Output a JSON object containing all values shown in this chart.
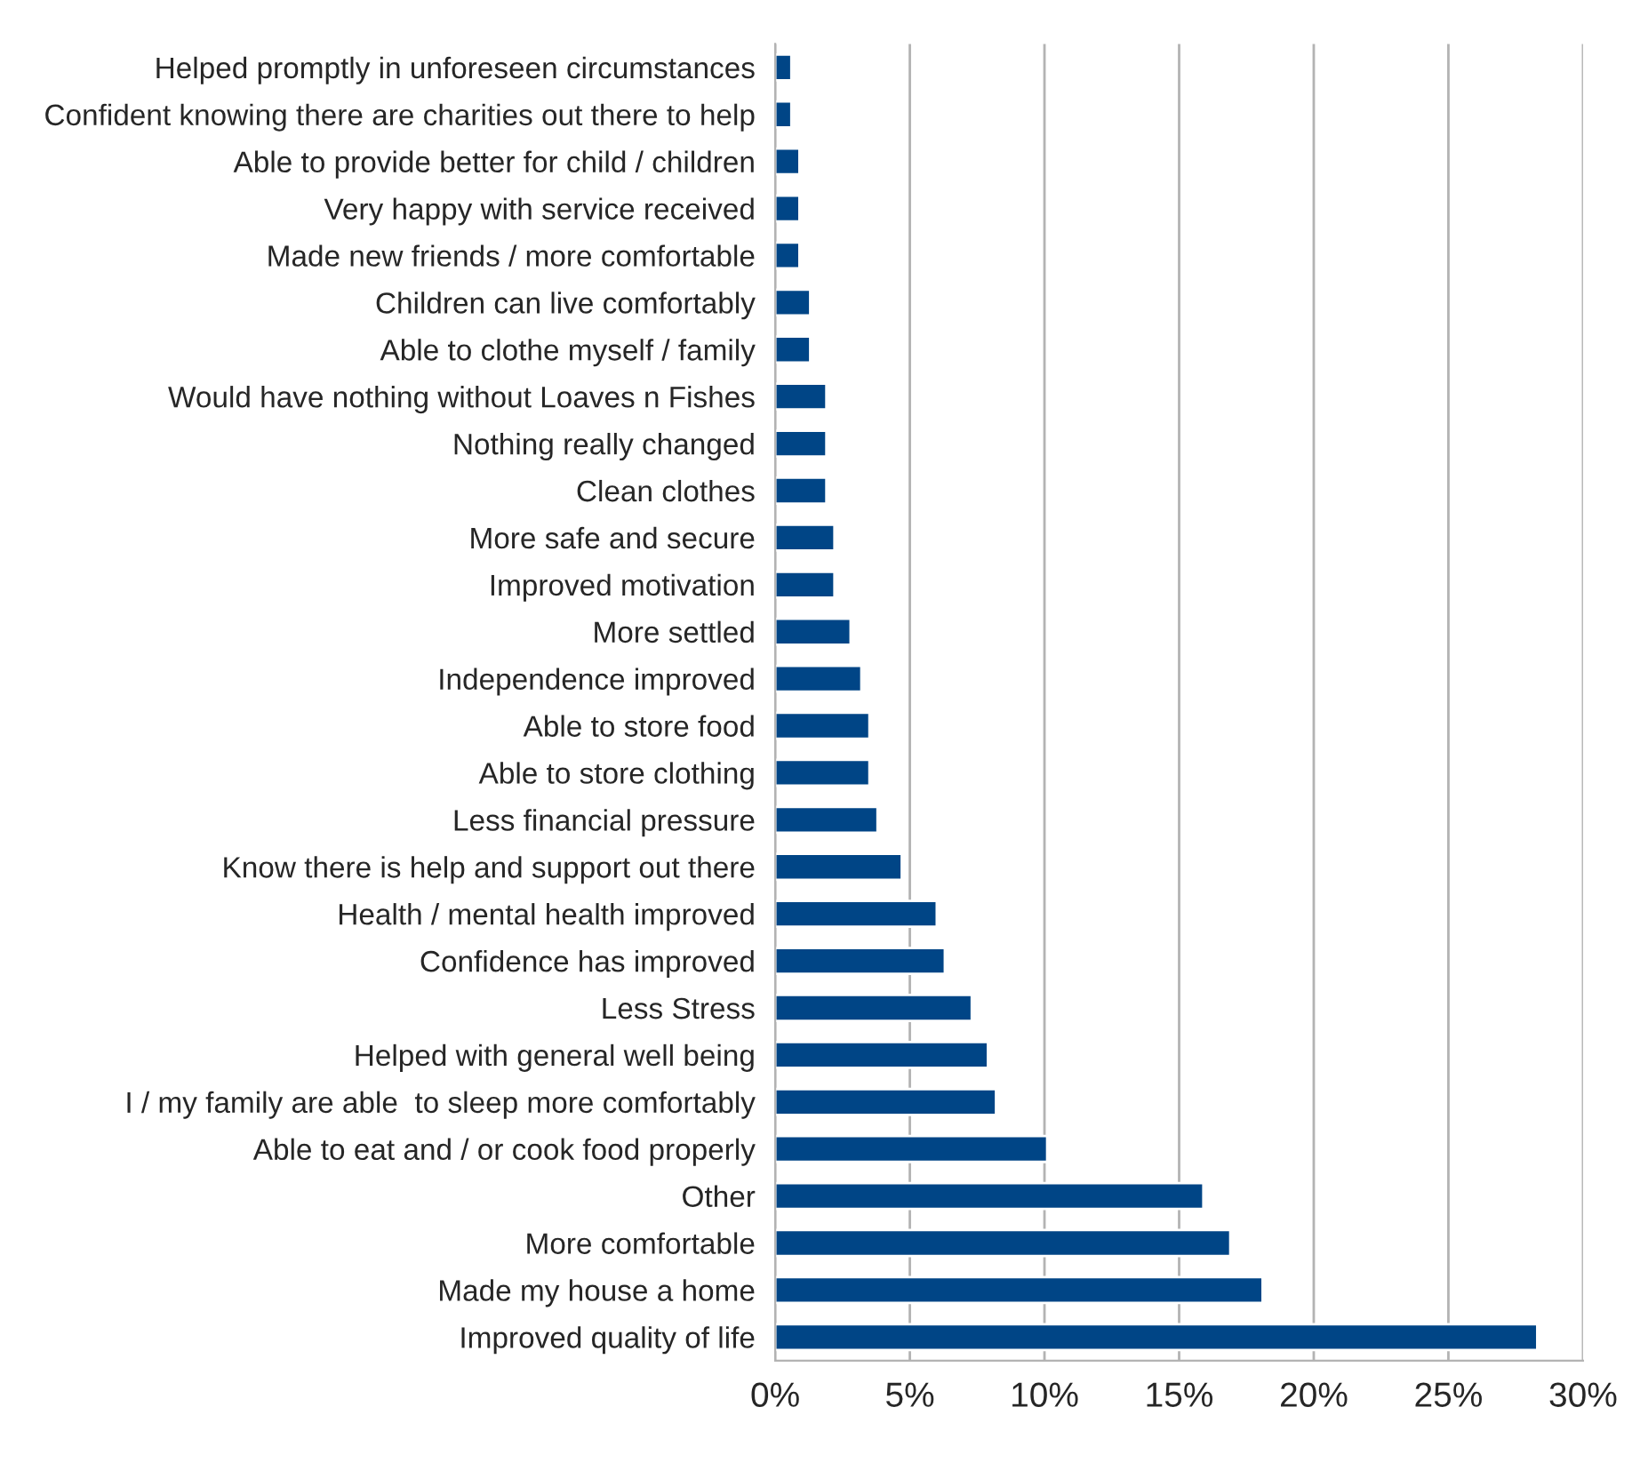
{
  "chart_data": {
    "type": "bar",
    "orientation": "horizontal",
    "categories": [
      "Helped promptly in unforeseen circumstances",
      "Confident knowing there are charities out there to help",
      "Able to provide better for child / children",
      "Very happy with service received",
      "Made new friends / more comfortable",
      "Children can live comfortably",
      "Able to clothe myself / family",
      "Would have nothing without Loaves n Fishes",
      "Nothing really changed",
      "Clean clothes",
      "More safe and secure",
      "Improved motivation",
      "More settled",
      "Independence improved",
      "Able to store food",
      "Able to store clothing",
      "Less financial pressure",
      "Know there is help and support out there",
      "Health / mental health improved",
      "Confidence has improved",
      "Less Stress",
      "Helped with general well being",
      "I / my family are able  to sleep more comfortably",
      "Able to eat and / or cook food properly",
      "Other",
      "More comfortable",
      "Made my house a home",
      "Improved quality of life"
    ],
    "values": [
      0.6,
      0.6,
      0.9,
      0.9,
      0.9,
      1.3,
      1.3,
      1.9,
      1.9,
      1.9,
      2.2,
      2.2,
      2.8,
      3.2,
      3.5,
      3.5,
      3.8,
      4.7,
      6.0,
      6.3,
      7.3,
      7.9,
      8.2,
      10.1,
      15.9,
      16.9,
      18.1,
      28.3
    ],
    "color": "#004586",
    "xlim": [
      0,
      30
    ],
    "xticks": [
      {
        "value": 0,
        "label": "0%"
      },
      {
        "value": 5,
        "label": "5%"
      },
      {
        "value": 10,
        "label": "10%"
      },
      {
        "value": 15,
        "label": "15%"
      },
      {
        "value": 20,
        "label": "20%"
      },
      {
        "value": 25,
        "label": "25%"
      },
      {
        "value": 30,
        "label": "30%"
      }
    ],
    "grid": "x"
  }
}
